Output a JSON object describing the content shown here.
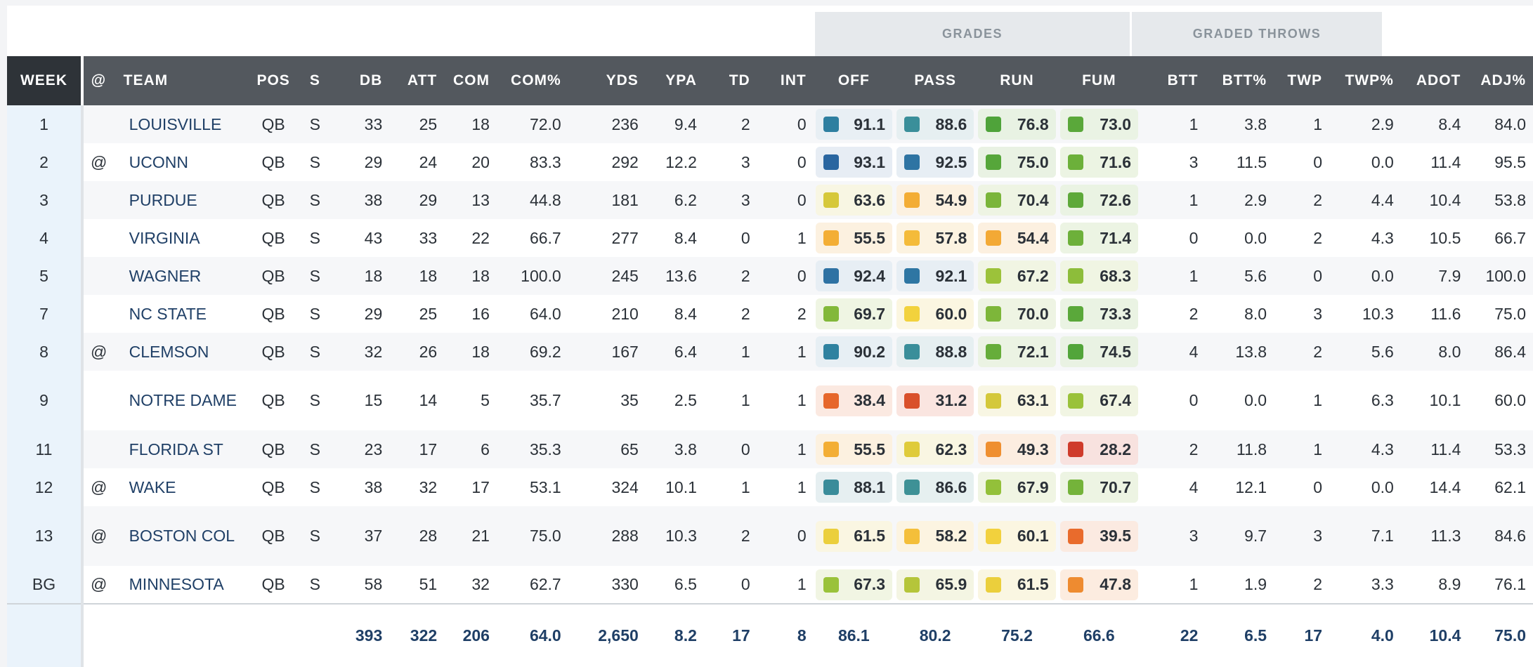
{
  "groups": {
    "grades": "GRADES",
    "graded_throws": "GRADED THROWS"
  },
  "columns": {
    "week": "WEEK",
    "at": "@",
    "team": "TEAM",
    "pos": "POS",
    "s": "S",
    "db": "DB",
    "att": "ATT",
    "com": "COM",
    "com_pct": "COM%",
    "yds": "YDS",
    "ypa": "YPA",
    "td": "TD",
    "int": "INT",
    "off": "OFF",
    "pass": "PASS",
    "run": "RUN",
    "fum": "FUM",
    "btt": "BTT",
    "btt_pct": "BTT%",
    "twp": "TWP",
    "twp_pct": "TWP%",
    "adot": "ADOT",
    "adj_pct": "ADJ%"
  },
  "grade_colors": {
    "dark_blue": "#2e6fa4",
    "teal": "#3a8f9a",
    "green": "#5aa83a",
    "light_green": "#8fbf3a",
    "yellow_green": "#c9c93a",
    "yellow": "#f1c63b",
    "orange_yellow": "#f3ad35",
    "orange": "#ef8a30",
    "dark_orange": "#e4612b",
    "red": "#cf3b2b"
  },
  "rows": [
    {
      "week": "1",
      "at": "",
      "team": "LOUISVILLE",
      "pos": "QB",
      "s": "S",
      "db": "33",
      "att": "25",
      "com": "18",
      "com_pct": "72.0",
      "yds": "236",
      "ypa": "9.4",
      "td": "2",
      "int": "0",
      "off": {
        "v": "91.1",
        "c": "#2e7fa0",
        "bg": "#e8eff4"
      },
      "pass": {
        "v": "88.6",
        "c": "#3a8f9a",
        "bg": "#e6eff1"
      },
      "run": {
        "v": "76.8",
        "c": "#4fa33a",
        "bg": "#e8f2e3"
      },
      "fum": {
        "v": "73.0",
        "c": "#5aa83a",
        "bg": "#eaf3e4"
      },
      "btt": "1",
      "btt_pct": "3.8",
      "twp": "1",
      "twp_pct": "2.9",
      "adot": "8.4",
      "adj_pct": "84.0"
    },
    {
      "week": "2",
      "at": "@",
      "team": "UCONN",
      "pos": "QB",
      "s": "S",
      "db": "29",
      "att": "24",
      "com": "20",
      "com_pct": "83.3",
      "yds": "292",
      "ypa": "12.2",
      "td": "3",
      "int": "0",
      "off": {
        "v": "93.1",
        "c": "#2a66a0",
        "bg": "#e7edf4"
      },
      "pass": {
        "v": "92.5",
        "c": "#2e74a3",
        "bg": "#e7eef4"
      },
      "run": {
        "v": "75.0",
        "c": "#56a63a",
        "bg": "#e9f2e3"
      },
      "fum": {
        "v": "71.6",
        "c": "#6cb03a",
        "bg": "#ecf4e3"
      },
      "btt": "3",
      "btt_pct": "11.5",
      "twp": "0",
      "twp_pct": "0.0",
      "adot": "11.4",
      "adj_pct": "95.5"
    },
    {
      "week": "3",
      "at": "",
      "team": "PURDUE",
      "pos": "QB",
      "s": "S",
      "db": "38",
      "att": "29",
      "com": "13",
      "com_pct": "44.8",
      "yds": "181",
      "ypa": "6.2",
      "td": "3",
      "int": "0",
      "off": {
        "v": "63.6",
        "c": "#d6c83a",
        "bg": "#f8f6e3"
      },
      "pass": {
        "v": "54.9",
        "c": "#f3ad35",
        "bg": "#fcf1e0"
      },
      "run": {
        "v": "70.4",
        "c": "#7ab53a",
        "bg": "#eef4e3"
      },
      "fum": {
        "v": "72.6",
        "c": "#5ea93a",
        "bg": "#eaf3e3"
      },
      "btt": "1",
      "btt_pct": "2.9",
      "twp": "2",
      "twp_pct": "4.4",
      "adot": "10.4",
      "adj_pct": "53.8"
    },
    {
      "week": "4",
      "at": "",
      "team": "VIRGINIA",
      "pos": "QB",
      "s": "S",
      "db": "43",
      "att": "33",
      "com": "22",
      "com_pct": "66.7",
      "yds": "277",
      "ypa": "8.4",
      "td": "0",
      "int": "1",
      "off": {
        "v": "55.5",
        "c": "#f3ae35",
        "bg": "#fcf1e0"
      },
      "pass": {
        "v": "57.8",
        "c": "#f4bb3a",
        "bg": "#fcf3e1"
      },
      "run": {
        "v": "54.4",
        "c": "#f3a935",
        "bg": "#fcf0e0"
      },
      "fum": {
        "v": "71.4",
        "c": "#6db03a",
        "bg": "#ecf4e3"
      },
      "btt": "0",
      "btt_pct": "0.0",
      "twp": "2",
      "twp_pct": "4.3",
      "adot": "10.5",
      "adj_pct": "66.7"
    },
    {
      "week": "5",
      "at": "",
      "team": "WAGNER",
      "pos": "QB",
      "s": "S",
      "db": "18",
      "att": "18",
      "com": "18",
      "com_pct": "100.0",
      "yds": "245",
      "ypa": "13.6",
      "td": "2",
      "int": "0",
      "off": {
        "v": "92.4",
        "c": "#2e72a3",
        "bg": "#e7eef4"
      },
      "pass": {
        "v": "92.1",
        "c": "#2e76a3",
        "bg": "#e7eef4"
      },
      "run": {
        "v": "67.2",
        "c": "#9cc23a",
        "bg": "#f1f5e3"
      },
      "fum": {
        "v": "68.3",
        "c": "#8dbd3a",
        "bg": "#f0f5e3"
      },
      "btt": "1",
      "btt_pct": "5.6",
      "twp": "0",
      "twp_pct": "0.0",
      "adot": "7.9",
      "adj_pct": "100.0"
    },
    {
      "week": "7",
      "at": "",
      "team": "NC STATE",
      "pos": "QB",
      "s": "S",
      "db": "29",
      "att": "25",
      "com": "16",
      "com_pct": "64.0",
      "yds": "210",
      "ypa": "8.4",
      "td": "2",
      "int": "2",
      "off": {
        "v": "69.7",
        "c": "#82b83a",
        "bg": "#eff5e3"
      },
      "pass": {
        "v": "60.0",
        "c": "#f2d23d",
        "bg": "#fbf6e1"
      },
      "run": {
        "v": "70.0",
        "c": "#7db63a",
        "bg": "#eef4e3"
      },
      "fum": {
        "v": "73.3",
        "c": "#5aa83a",
        "bg": "#eaf3e3"
      },
      "btt": "2",
      "btt_pct": "8.0",
      "twp": "3",
      "twp_pct": "10.3",
      "adot": "11.6",
      "adj_pct": "75.0"
    },
    {
      "week": "8",
      "at": "@",
      "team": "CLEMSON",
      "pos": "QB",
      "s": "S",
      "db": "32",
      "att": "26",
      "com": "18",
      "com_pct": "69.2",
      "yds": "167",
      "ypa": "6.4",
      "td": "1",
      "int": "1",
      "off": {
        "v": "90.2",
        "c": "#2f82a0",
        "bg": "#e7eff4"
      },
      "pass": {
        "v": "88.8",
        "c": "#3a8e9a",
        "bg": "#e6eff1"
      },
      "run": {
        "v": "72.1",
        "c": "#66ad3a",
        "bg": "#ebf3e3"
      },
      "fum": {
        "v": "74.5",
        "c": "#52a53a",
        "bg": "#e9f2e3"
      },
      "btt": "4",
      "btt_pct": "13.8",
      "twp": "2",
      "twp_pct": "5.6",
      "adot": "8.0",
      "adj_pct": "86.4"
    },
    {
      "week": "9",
      "at": "",
      "team": "NOTRE DAME",
      "pos": "QB",
      "s": "S",
      "db": "15",
      "att": "14",
      "com": "5",
      "com_pct": "35.7",
      "yds": "35",
      "ypa": "2.5",
      "td": "1",
      "int": "1",
      "off": {
        "v": "38.4",
        "c": "#e6672b",
        "bg": "#fbe9e1"
      },
      "pass": {
        "v": "31.2",
        "c": "#d9502b",
        "bg": "#fae5e0"
      },
      "run": {
        "v": "63.1",
        "c": "#d4c83a",
        "bg": "#f8f6e3"
      },
      "fum": {
        "v": "67.4",
        "c": "#9ac23a",
        "bg": "#f1f5e3"
      },
      "btt": "0",
      "btt_pct": "0.0",
      "twp": "1",
      "twp_pct": "6.3",
      "adot": "10.1",
      "adj_pct": "60.0",
      "tall": true
    },
    {
      "week": "11",
      "at": "",
      "team": "FLORIDA ST",
      "pos": "QB",
      "s": "S",
      "db": "23",
      "att": "17",
      "com": "6",
      "com_pct": "35.3",
      "yds": "65",
      "ypa": "3.8",
      "td": "0",
      "int": "1",
      "off": {
        "v": "55.5",
        "c": "#f3ae35",
        "bg": "#fcf1e0"
      },
      "pass": {
        "v": "62.3",
        "c": "#dfcb3b",
        "bg": "#f9f6e2"
      },
      "run": {
        "v": "49.3",
        "c": "#ef8f30",
        "bg": "#fcede0"
      },
      "fum": {
        "v": "28.2",
        "c": "#cf3b2b",
        "bg": "#f8e2df"
      },
      "btt": "2",
      "btt_pct": "11.8",
      "twp": "1",
      "twp_pct": "4.3",
      "adot": "11.4",
      "adj_pct": "53.3"
    },
    {
      "week": "12",
      "at": "@",
      "team": "WAKE",
      "pos": "QB",
      "s": "S",
      "db": "38",
      "att": "32",
      "com": "17",
      "com_pct": "53.1",
      "yds": "324",
      "ypa": "10.1",
      "td": "1",
      "int": "1",
      "off": {
        "v": "88.1",
        "c": "#3a8c9a",
        "bg": "#e6eff1"
      },
      "pass": {
        "v": "86.6",
        "c": "#3e9196",
        "bg": "#e6f0f0"
      },
      "run": {
        "v": "67.9",
        "c": "#93c03a",
        "bg": "#f0f5e3"
      },
      "fum": {
        "v": "70.7",
        "c": "#74b33a",
        "bg": "#edf4e3"
      },
      "btt": "4",
      "btt_pct": "12.1",
      "twp": "0",
      "twp_pct": "0.0",
      "adot": "14.4",
      "adj_pct": "62.1"
    },
    {
      "week": "13",
      "at": "@",
      "team": "BOSTON COL",
      "pos": "QB",
      "s": "S",
      "db": "37",
      "att": "28",
      "com": "21",
      "com_pct": "75.0",
      "yds": "288",
      "ypa": "10.3",
      "td": "2",
      "int": "0",
      "off": {
        "v": "61.5",
        "c": "#ebcf3c",
        "bg": "#faf6e2"
      },
      "pass": {
        "v": "58.2",
        "c": "#f4bf3a",
        "bg": "#fcf4e1"
      },
      "run": {
        "v": "60.1",
        "c": "#f2d13d",
        "bg": "#fbf6e1"
      },
      "fum": {
        "v": "39.5",
        "c": "#e96b2c",
        "bg": "#fbeae1"
      },
      "btt": "3",
      "btt_pct": "9.7",
      "twp": "3",
      "twp_pct": "7.1",
      "adot": "11.3",
      "adj_pct": "84.6",
      "tall": true
    },
    {
      "week": "BG",
      "at": "@",
      "team": "MINNESOTA",
      "pos": "QB",
      "s": "S",
      "db": "58",
      "att": "51",
      "com": "32",
      "com_pct": "62.7",
      "yds": "330",
      "ypa": "6.5",
      "td": "0",
      "int": "1",
      "off": {
        "v": "67.3",
        "c": "#9ac23a",
        "bg": "#f1f5e3"
      },
      "pass": {
        "v": "65.9",
        "c": "#b5c53a",
        "bg": "#f4f5e3"
      },
      "run": {
        "v": "61.5",
        "c": "#ebcf3c",
        "bg": "#faf6e2"
      },
      "fum": {
        "v": "47.8",
        "c": "#ee8b30",
        "bg": "#fcece0"
      },
      "btt": "1",
      "btt_pct": "1.9",
      "twp": "2",
      "twp_pct": "3.3",
      "adot": "8.9",
      "adj_pct": "76.1"
    }
  ],
  "totals": {
    "db": "393",
    "att": "322",
    "com": "206",
    "com_pct": "64.0",
    "yds": "2,650",
    "ypa": "8.2",
    "td": "17",
    "int": "8",
    "off": "86.1",
    "pass": "80.2",
    "run": "75.2",
    "fum": "66.6",
    "btt": "22",
    "btt_pct": "6.5",
    "twp": "17",
    "twp_pct": "4.0",
    "adot": "10.4",
    "adj_pct": "75.0"
  }
}
